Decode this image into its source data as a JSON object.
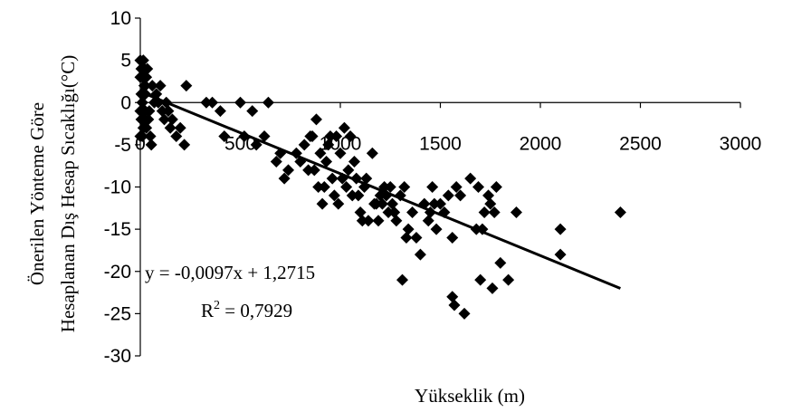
{
  "chart_data": {
    "type": "scatter",
    "title": "",
    "xlabel": "Yükseklik (m)",
    "ylabel_line1": "Önerilen Yönteme Göre",
    "ylabel_line2": "Hesaplanan Dış Hesap Sıcaklığı(°C)",
    "xlim": [
      0,
      3000
    ],
    "ylim": [
      -30,
      10
    ],
    "xticks": [
      "0",
      "500",
      "1000",
      "1500",
      "2000",
      "2500",
      "3000"
    ],
    "yticks": [
      "10",
      "5",
      "0",
      "-5",
      "-10",
      "-15",
      "-20",
      "-25",
      "-30"
    ],
    "grid": false,
    "legend": "none",
    "marker_color": "#000000",
    "equation_text": "y = -0,0097x + 1,2715",
    "r2_prefix": "R",
    "r2_exp": "2",
    "r2_suffix": " = 0,7929",
    "trendline": {
      "slope": -0.0097,
      "intercept": 1.2715,
      "x_range": [
        0,
        2400
      ]
    },
    "points": [
      [
        0,
        5
      ],
      [
        5,
        4
      ],
      [
        10,
        3
      ],
      [
        15,
        5
      ],
      [
        20,
        4
      ],
      [
        25,
        2
      ],
      [
        0,
        3
      ],
      [
        5,
        1
      ],
      [
        10,
        0
      ],
      [
        15,
        -1
      ],
      [
        0,
        -1
      ],
      [
        5,
        -2
      ],
      [
        10,
        0
      ],
      [
        20,
        2
      ],
      [
        25,
        1
      ],
      [
        30,
        3
      ],
      [
        35,
        4
      ],
      [
        0,
        -4
      ],
      [
        10,
        -4
      ],
      [
        15,
        -3
      ],
      [
        20,
        -2
      ],
      [
        25,
        -1
      ],
      [
        30,
        -3
      ],
      [
        40,
        -2
      ],
      [
        45,
        -1
      ],
      [
        50,
        -4
      ],
      [
        55,
        -5
      ],
      [
        60,
        2
      ],
      [
        70,
        0
      ],
      [
        80,
        1
      ],
      [
        90,
        0
      ],
      [
        100,
        2
      ],
      [
        110,
        -1
      ],
      [
        120,
        -2
      ],
      [
        130,
        0
      ],
      [
        140,
        -1
      ],
      [
        150,
        -3
      ],
      [
        160,
        -2
      ],
      [
        180,
        -4
      ],
      [
        200,
        -3
      ],
      [
        220,
        -5
      ],
      [
        230,
        2
      ],
      [
        330,
        0
      ],
      [
        360,
        0
      ],
      [
        400,
        -1
      ],
      [
        420,
        -4
      ],
      [
        500,
        0
      ],
      [
        520,
        -4
      ],
      [
        560,
        -1
      ],
      [
        580,
        -5
      ],
      [
        620,
        -4
      ],
      [
        640,
        0
      ],
      [
        680,
        -7
      ],
      [
        700,
        -6
      ],
      [
        720,
        -9
      ],
      [
        740,
        -8
      ],
      [
        780,
        -6
      ],
      [
        800,
        -7
      ],
      [
        820,
        -5
      ],
      [
        840,
        -8
      ],
      [
        860,
        -4
      ],
      [
        880,
        -2
      ],
      [
        900,
        -6
      ],
      [
        920,
        -10
      ],
      [
        940,
        -5
      ],
      [
        960,
        -9
      ],
      [
        980,
        -4
      ],
      [
        1000,
        -6
      ],
      [
        1020,
        -3
      ],
      [
        1040,
        -8
      ],
      [
        1060,
        -11
      ],
      [
        1080,
        -9
      ],
      [
        1100,
        -13
      ],
      [
        1120,
        -10
      ],
      [
        1140,
        -14
      ],
      [
        1160,
        -6
      ],
      [
        1180,
        -12
      ],
      [
        1200,
        -11
      ],
      [
        1220,
        -10
      ],
      [
        1240,
        -13
      ],
      [
        1260,
        -12
      ],
      [
        1280,
        -14
      ],
      [
        1300,
        -11
      ],
      [
        1320,
        -10
      ],
      [
        1340,
        -15
      ],
      [
        1360,
        -13
      ],
      [
        1380,
        -16
      ],
      [
        1400,
        -18
      ],
      [
        1420,
        -12
      ],
      [
        1440,
        -14
      ],
      [
        1460,
        -10
      ],
      [
        1480,
        -15
      ],
      [
        1500,
        -12
      ],
      [
        1520,
        -13
      ],
      [
        1540,
        -11
      ],
      [
        1560,
        -16
      ],
      [
        1580,
        -10
      ],
      [
        1620,
        -25
      ],
      [
        1650,
        -9
      ],
      [
        1680,
        -15
      ],
      [
        1700,
        -21
      ],
      [
        1720,
        -13
      ],
      [
        1740,
        -11
      ],
      [
        1760,
        -22
      ],
      [
        1780,
        -10
      ],
      [
        1800,
        -19
      ],
      [
        1840,
        -21
      ],
      [
        1880,
        -13
      ],
      [
        2100,
        -15
      ],
      [
        2100,
        -18
      ],
      [
        2400,
        -13
      ],
      [
        850,
        -4
      ],
      [
        870,
        -8
      ],
      [
        890,
        -10
      ],
      [
        910,
        -12
      ],
      [
        930,
        -7
      ],
      [
        950,
        -4
      ],
      [
        970,
        -11
      ],
      [
        990,
        -12
      ],
      [
        1010,
        -9
      ],
      [
        1030,
        -10
      ],
      [
        1050,
        -4
      ],
      [
        1070,
        -7
      ],
      [
        1090,
        -11
      ],
      [
        1110,
        -14
      ],
      [
        1130,
        -9
      ],
      [
        1170,
        -12
      ],
      [
        1190,
        -14
      ],
      [
        1210,
        -12
      ],
      [
        1230,
        -11
      ],
      [
        1250,
        -10
      ],
      [
        1270,
        -13
      ],
      [
        1310,
        -21
      ],
      [
        1330,
        -16
      ],
      [
        1450,
        -13
      ],
      [
        1470,
        -12
      ],
      [
        1560,
        -23
      ],
      [
        1570,
        -24
      ],
      [
        1600,
        -11
      ],
      [
        1690,
        -10
      ],
      [
        1710,
        -15
      ],
      [
        1750,
        -12
      ],
      [
        1770,
        -13
      ]
    ]
  }
}
